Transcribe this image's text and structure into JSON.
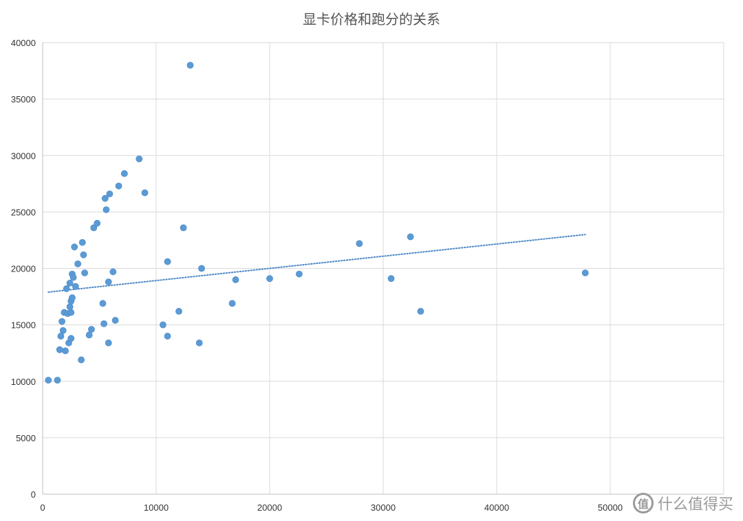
{
  "chart_data": {
    "type": "scatter",
    "title": "显卡价格和跑分的关系",
    "xlabel": "",
    "ylabel": "",
    "xlim": [
      0,
      60000
    ],
    "ylim": [
      0,
      40000
    ],
    "x_ticks": [
      "0",
      "10000",
      "20000",
      "30000",
      "40000",
      "50000"
    ],
    "y_ticks": [
      "0",
      "5000",
      "10000",
      "15000",
      "20000",
      "25000",
      "30000",
      "35000",
      "40000"
    ],
    "grid": true,
    "marker_color": "#5b9bd5",
    "trendline": {
      "type": "linear",
      "from": [
        500,
        17900
      ],
      "to": [
        47800,
        23000
      ],
      "style": "dotted",
      "color": "#4a86c5"
    },
    "series": [
      {
        "points": [
          [
            500,
            10100
          ],
          [
            1300,
            10100
          ],
          [
            1500,
            12800
          ],
          [
            1600,
            14000
          ],
          [
            1700,
            15300
          ],
          [
            1800,
            14500
          ],
          [
            1900,
            16100
          ],
          [
            2000,
            12700
          ],
          [
            2100,
            18200
          ],
          [
            2200,
            16000
          ],
          [
            2300,
            13400
          ],
          [
            2400,
            18700
          ],
          [
            2400,
            16600
          ],
          [
            2500,
            13800
          ],
          [
            2500,
            17100
          ],
          [
            2500,
            16100
          ],
          [
            2600,
            19500
          ],
          [
            2600,
            17400
          ],
          [
            2700,
            19200
          ],
          [
            2800,
            21900
          ],
          [
            2900,
            18400
          ],
          [
            3100,
            20400
          ],
          [
            3400,
            11900
          ],
          [
            3500,
            22300
          ],
          [
            3600,
            21200
          ],
          [
            3700,
            19600
          ],
          [
            4100,
            14100
          ],
          [
            4300,
            14600
          ],
          [
            4500,
            23600
          ],
          [
            4800,
            24000
          ],
          [
            5300,
            16900
          ],
          [
            5400,
            15100
          ],
          [
            5500,
            26200
          ],
          [
            5600,
            25200
          ],
          [
            5800,
            13400
          ],
          [
            5800,
            18800
          ],
          [
            5900,
            26600
          ],
          [
            6200,
            19700
          ],
          [
            6400,
            15400
          ],
          [
            6700,
            27300
          ],
          [
            7200,
            28400
          ],
          [
            8500,
            29700
          ],
          [
            9000,
            26700
          ],
          [
            10600,
            15000
          ],
          [
            11000,
            20600
          ],
          [
            11000,
            14000
          ],
          [
            12000,
            16200
          ],
          [
            12400,
            23600
          ],
          [
            13000,
            38000
          ],
          [
            13800,
            13400
          ],
          [
            14000,
            20000
          ],
          [
            16700,
            16900
          ],
          [
            17000,
            19000
          ],
          [
            20000,
            19100
          ],
          [
            22600,
            19500
          ],
          [
            27900,
            22200
          ],
          [
            30700,
            19100
          ],
          [
            32400,
            22800
          ],
          [
            33300,
            16200
          ],
          [
            47800,
            19600
          ]
        ]
      }
    ]
  },
  "watermark": {
    "badge": "值",
    "text": "什么值得买"
  }
}
